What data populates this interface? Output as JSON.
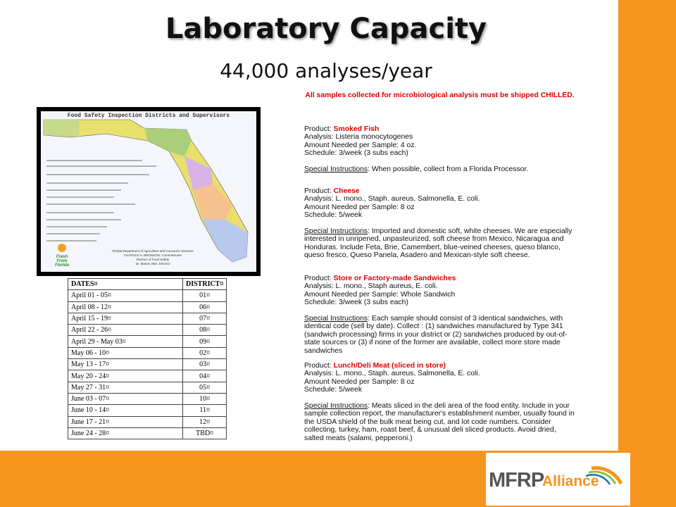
{
  "header": {
    "title": "Laboratory Capacity",
    "subtitle": "44,000 analyses/year"
  },
  "map": {
    "title": "Food Safety Inspection Districts and Supervisors",
    "footer": [
      "Florida Department of Agriculture and Consumer Services",
      "CHARLES H. BRONSON, Commissioner",
      "Division of Food Safety",
      "Dr. Marion Aller, Director"
    ],
    "badge": [
      "Fresh",
      "From",
      "Florida"
    ]
  },
  "table": {
    "header": [
      "DATES¤",
      "DISTRICT¤"
    ],
    "rows": [
      [
        "April 01 - 05¤",
        "01¤"
      ],
      [
        "April 08 - 12¤",
        "06¤"
      ],
      [
        "April 15 - 19¤",
        "07¤"
      ],
      [
        "April 22 - 26¤",
        "08¤"
      ],
      [
        "April 29 - May 03¤",
        "09¤"
      ],
      [
        "May 06 - 10¤",
        "02¤"
      ],
      [
        "May 13 - 17¤",
        "03¤"
      ],
      [
        "May 20 - 24¤",
        "04¤"
      ],
      [
        "May 27 - 31¤",
        "05¤"
      ],
      [
        "June 03 - 07¤",
        "10¤"
      ],
      [
        "June 10 - 14¤",
        "11¤"
      ],
      [
        "June 17 - 21¤",
        "12¤"
      ],
      [
        "June 24 - 28¤",
        "TBD¤"
      ]
    ]
  },
  "info": {
    "notice": "All samples collected for microbiological analysis must be shipped CHILLED.",
    "products": [
      {
        "label": "Product:",
        "name": "Smoked Fish",
        "analysis": "Analysis: Listeria monocytogenes",
        "amount": "Amount Needed per Sample: 4 oz.",
        "schedule": "Schedule: 3/week (3 subs each)",
        "instructions_label": "Special Instructions",
        "instructions": ": When possible, collect from a Florida Processor."
      },
      {
        "label": "Product:",
        "name": "Cheese",
        "analysis": "Analysis: L. mono., Staph. aureus, Salmonella, E. coli.",
        "amount": "Amount Needed per Sample: 8 oz",
        "schedule": "Schedule: 5/week",
        "instructions_label": "Special Instructions",
        "instructions": ": Imported and domestic soft, white cheeses. We are especially interested in unripened, unpasteurized, soft cheese from Mexico, Nicaragua and Honduras. Include Feta, Brie, Camembert, blue-veined cheeses, queso blanco, queso fresco, Queso Panela, Asadero and Mexican-style soft cheese."
      },
      {
        "label": "Product:",
        "name": "Store or Factory-made Sandwiches",
        "analysis": "Analysis: L. mono., Staph aureus, E. coli.",
        "amount": "Amount Needed per Sample: Whole Sandwich",
        "schedule": "Schedule: 3/week (3 subs each)",
        "instructions_label": "Special Instructions",
        "instructions": ": Each sample should consist of 3 identical sandwiches, with identical code (sell by date). Collect : (1) sandwiches manufactured by Type 341 (sandwich processing) firms in your district or (2) sandwiches produced by out-of-state sources or (3) if none of the former are available, collect more store made sandwiches"
      },
      {
        "label": "Product:",
        "name": "Lunch/Deli Meat (sliced in store)",
        "analysis": "Analysis: L. mono., Staph. aureus, Salmonella, E. coli.",
        "amount": "Amount Needed per Sample: 8 oz",
        "schedule": "Schedule: 5/week",
        "instructions_label": "Special Instructions",
        "instructions": ": Meats sliced in the deli area of the food entity. Include in your sample collection report, the manufacturer's establishment number, usually found in the USDA shield of the bulk meat being cut, and lot code numbers. Consider collecting, turkey, ham, roast beef, & unusual deli sliced products. Avoid dried, salted meats (salami, pepperoni.)"
      }
    ]
  },
  "logo": {
    "brand": "MFRP",
    "suffix": "Alliance"
  }
}
